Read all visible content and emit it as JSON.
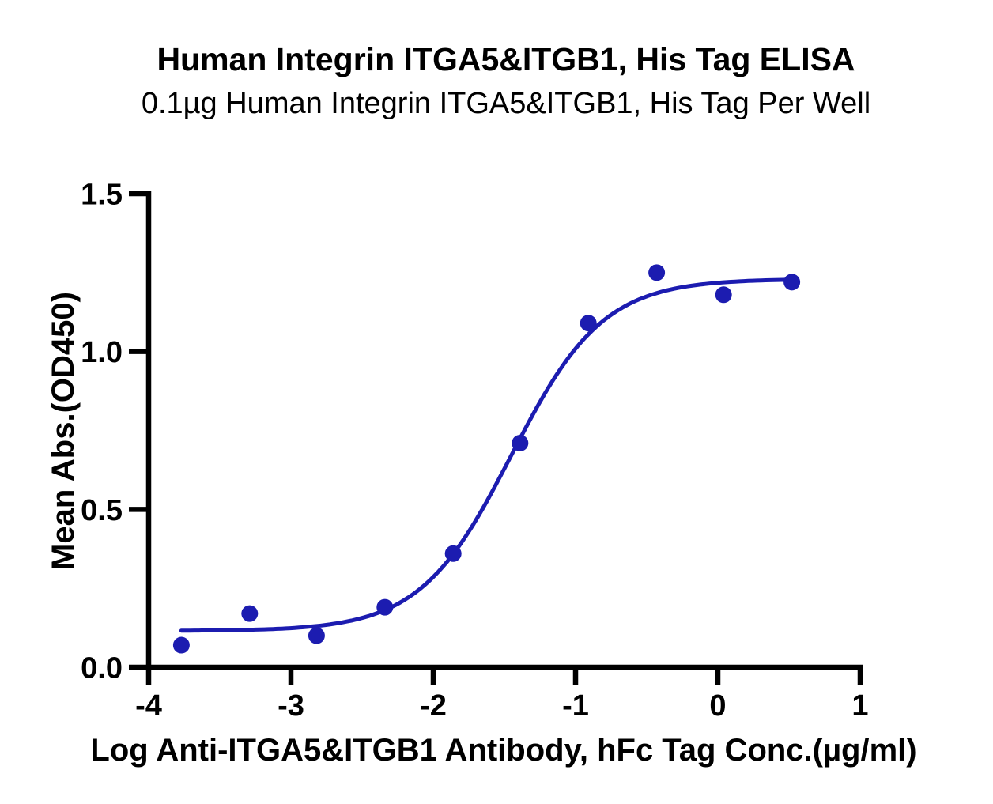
{
  "chart_data": {
    "type": "scatter",
    "title": "Human Integrin ITGA5&ITGB1, His Tag ELISA",
    "subtitle": "0.1µg Human Integrin ITGA5&ITGB1, His Tag Per Well",
    "xlabel": "Log Anti-ITGA5&ITGB1 Antibody, hFc Tag Conc.(µg/ml)",
    "ylabel": "Mean Abs.(OD450)",
    "xlim": [
      -4,
      1
    ],
    "ylim": [
      0,
      1.5
    ],
    "x_ticks": [
      -4,
      -3,
      -2,
      -1,
      0,
      1
    ],
    "x_tick_labels": [
      "-4",
      "-3",
      "-2",
      "-1",
      "0",
      "1"
    ],
    "y_ticks": [
      0,
      0.5,
      1,
      1.5
    ],
    "y_tick_labels": [
      "0.0",
      "0.5",
      "1.0",
      "1.5"
    ],
    "grid": false,
    "legend": null,
    "marker_color": "#1c1cb0",
    "line_color": "#1c1cb0",
    "axis_color": "#000000",
    "points": [
      {
        "x": -3.77,
        "y": 0.07
      },
      {
        "x": -3.29,
        "y": 0.17
      },
      {
        "x": -2.82,
        "y": 0.1
      },
      {
        "x": -2.34,
        "y": 0.19
      },
      {
        "x": -1.86,
        "y": 0.36
      },
      {
        "x": -1.39,
        "y": 0.71
      },
      {
        "x": -0.91,
        "y": 1.09
      },
      {
        "x": -0.43,
        "y": 1.25
      },
      {
        "x": 0.04,
        "y": 1.18
      },
      {
        "x": 0.52,
        "y": 1.22
      }
    ],
    "fit_curve": {
      "model": "4PL",
      "bottom": 0.115,
      "top": 1.23,
      "log_ec50": -1.45,
      "hill": 1.35,
      "x_start": -3.77,
      "x_end": 0.52
    }
  }
}
